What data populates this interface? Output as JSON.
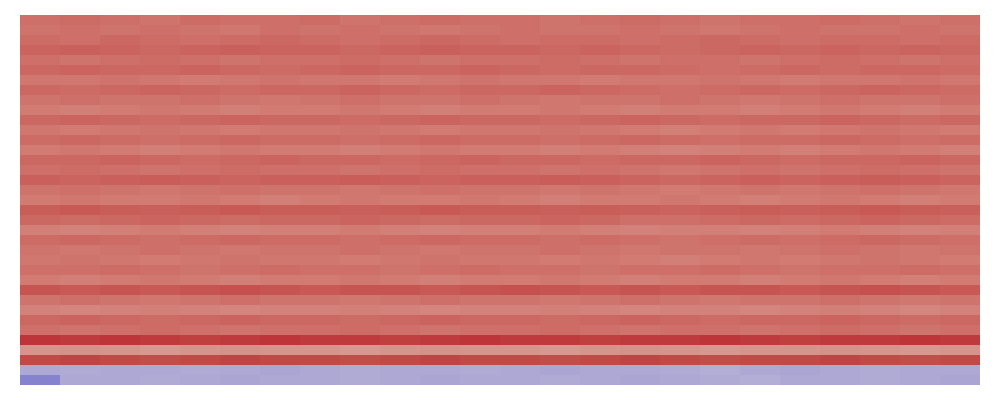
{
  "chart_data": {
    "type": "heatmap",
    "tick_labels": false,
    "zlim": [
      0,
      1
    ],
    "cells": [
      [
        0.8,
        0.81,
        0.8,
        0.79,
        0.81,
        0.8,
        0.8,
        0.81,
        0.79,
        0.8,
        0.81,
        0.8,
        0.8,
        0.79,
        0.8,
        0.81,
        0.8,
        0.79,
        0.8,
        0.8,
        0.81,
        0.8,
        0.79,
        0.8
      ],
      [
        0.79,
        0.8,
        0.79,
        0.8,
        0.79,
        0.78,
        0.8,
        0.79,
        0.8,
        0.79,
        0.78,
        0.79,
        0.8,
        0.79,
        0.79,
        0.8,
        0.79,
        0.78,
        0.79,
        0.8,
        0.79,
        0.79,
        0.8,
        0.79
      ],
      [
        0.81,
        0.8,
        0.82,
        0.81,
        0.8,
        0.81,
        0.82,
        0.81,
        0.8,
        0.81,
        0.82,
        0.81,
        0.8,
        0.81,
        0.81,
        0.8,
        0.81,
        0.82,
        0.81,
        0.8,
        0.81,
        0.81,
        0.8,
        0.81
      ],
      [
        0.83,
        0.84,
        0.83,
        0.82,
        0.83,
        0.84,
        0.83,
        0.83,
        0.82,
        0.83,
        0.84,
        0.83,
        0.83,
        0.82,
        0.83,
        0.82,
        0.81,
        0.82,
        0.83,
        0.82,
        0.83,
        0.82,
        0.83,
        0.82
      ],
      [
        0.8,
        0.79,
        0.8,
        0.81,
        0.8,
        0.79,
        0.8,
        0.8,
        0.81,
        0.8,
        0.79,
        0.8,
        0.8,
        0.81,
        0.8,
        0.79,
        0.8,
        0.8,
        0.79,
        0.8,
        0.81,
        0.8,
        0.79,
        0.8
      ],
      [
        0.82,
        0.83,
        0.82,
        0.82,
        0.83,
        0.82,
        0.81,
        0.82,
        0.83,
        0.82,
        0.82,
        0.83,
        0.82,
        0.81,
        0.82,
        0.82,
        0.81,
        0.8,
        0.81,
        0.82,
        0.81,
        0.82,
        0.82,
        0.81
      ],
      [
        0.78,
        0.78,
        0.79,
        0.78,
        0.77,
        0.78,
        0.79,
        0.78,
        0.78,
        0.77,
        0.78,
        0.79,
        0.78,
        0.78,
        0.77,
        0.78,
        0.78,
        0.79,
        0.78,
        0.77,
        0.78,
        0.78,
        0.79,
        0.78
      ],
      [
        0.82,
        0.81,
        0.82,
        0.83,
        0.82,
        0.81,
        0.82,
        0.82,
        0.83,
        0.82,
        0.81,
        0.82,
        0.82,
        0.83,
        0.82,
        0.81,
        0.8,
        0.81,
        0.82,
        0.81,
        0.82,
        0.83,
        0.82,
        0.81
      ],
      [
        0.79,
        0.8,
        0.79,
        0.79,
        0.8,
        0.79,
        0.78,
        0.79,
        0.8,
        0.79,
        0.79,
        0.8,
        0.79,
        0.78,
        0.79,
        0.79,
        0.8,
        0.79,
        0.78,
        0.79,
        0.8,
        0.79,
        0.79,
        0.8
      ],
      [
        0.77,
        0.76,
        0.77,
        0.78,
        0.77,
        0.76,
        0.77,
        0.77,
        0.78,
        0.77,
        0.76,
        0.77,
        0.77,
        0.78,
        0.77,
        0.76,
        0.77,
        0.77,
        0.76,
        0.77,
        0.78,
        0.77,
        0.76,
        0.77
      ],
      [
        0.82,
        0.83,
        0.82,
        0.81,
        0.82,
        0.83,
        0.82,
        0.82,
        0.81,
        0.82,
        0.83,
        0.82,
        0.82,
        0.81,
        0.82,
        0.83,
        0.82,
        0.81,
        0.82,
        0.82,
        0.83,
        0.82,
        0.81,
        0.82
      ],
      [
        0.78,
        0.77,
        0.78,
        0.79,
        0.78,
        0.77,
        0.78,
        0.78,
        0.79,
        0.78,
        0.77,
        0.78,
        0.78,
        0.79,
        0.78,
        0.77,
        0.76,
        0.77,
        0.78,
        0.77,
        0.78,
        0.79,
        0.78,
        0.77
      ],
      [
        0.81,
        0.82,
        0.81,
        0.8,
        0.81,
        0.82,
        0.81,
        0.81,
        0.8,
        0.81,
        0.82,
        0.81,
        0.81,
        0.8,
        0.81,
        0.82,
        0.81,
        0.8,
        0.81,
        0.81,
        0.82,
        0.81,
        0.8,
        0.81
      ],
      [
        0.77,
        0.78,
        0.77,
        0.76,
        0.77,
        0.78,
        0.77,
        0.77,
        0.76,
        0.77,
        0.78,
        0.77,
        0.77,
        0.76,
        0.77,
        0.76,
        0.75,
        0.76,
        0.77,
        0.76,
        0.77,
        0.78,
        0.77,
        0.76
      ],
      [
        0.82,
        0.82,
        0.83,
        0.82,
        0.81,
        0.82,
        0.83,
        0.82,
        0.82,
        0.81,
        0.82,
        0.83,
        0.82,
        0.82,
        0.81,
        0.82,
        0.82,
        0.83,
        0.82,
        0.81,
        0.82,
        0.82,
        0.83,
        0.82
      ],
      [
        0.8,
        0.81,
        0.8,
        0.79,
        0.8,
        0.81,
        0.8,
        0.8,
        0.79,
        0.8,
        0.81,
        0.8,
        0.8,
        0.79,
        0.8,
        0.79,
        0.78,
        0.79,
        0.8,
        0.79,
        0.8,
        0.81,
        0.8,
        0.79
      ],
      [
        0.84,
        0.83,
        0.84,
        0.85,
        0.84,
        0.83,
        0.84,
        0.84,
        0.85,
        0.84,
        0.83,
        0.84,
        0.84,
        0.85,
        0.84,
        0.83,
        0.82,
        0.83,
        0.84,
        0.83,
        0.84,
        0.85,
        0.84,
        0.83
      ],
      [
        0.79,
        0.8,
        0.79,
        0.78,
        0.79,
        0.8,
        0.79,
        0.79,
        0.78,
        0.79,
        0.8,
        0.79,
        0.79,
        0.78,
        0.79,
        0.78,
        0.77,
        0.78,
        0.79,
        0.78,
        0.79,
        0.8,
        0.79,
        0.78
      ],
      [
        0.77,
        0.78,
        0.77,
        0.77,
        0.78,
        0.77,
        0.76,
        0.77,
        0.78,
        0.77,
        0.77,
        0.78,
        0.77,
        0.76,
        0.77,
        0.77,
        0.78,
        0.77,
        0.76,
        0.77,
        0.78,
        0.77,
        0.76,
        0.77
      ],
      [
        0.85,
        0.86,
        0.85,
        0.84,
        0.85,
        0.86,
        0.85,
        0.85,
        0.84,
        0.85,
        0.86,
        0.85,
        0.85,
        0.84,
        0.85,
        0.84,
        0.83,
        0.84,
        0.85,
        0.84,
        0.85,
        0.86,
        0.85,
        0.84
      ],
      [
        0.82,
        0.81,
        0.82,
        0.83,
        0.82,
        0.81,
        0.82,
        0.82,
        0.83,
        0.82,
        0.81,
        0.82,
        0.82,
        0.83,
        0.82,
        0.8,
        0.8,
        0.81,
        0.82,
        0.81,
        0.82,
        0.83,
        0.82,
        0.81
      ],
      [
        0.76,
        0.75,
        0.76,
        0.77,
        0.76,
        0.75,
        0.76,
        0.76,
        0.77,
        0.76,
        0.75,
        0.76,
        0.76,
        0.77,
        0.76,
        0.75,
        0.76,
        0.76,
        0.75,
        0.76,
        0.77,
        0.76,
        0.75,
        0.76
      ],
      [
        0.81,
        0.82,
        0.81,
        0.8,
        0.81,
        0.82,
        0.81,
        0.81,
        0.8,
        0.81,
        0.82,
        0.81,
        0.81,
        0.8,
        0.81,
        0.8,
        0.79,
        0.8,
        0.81,
        0.8,
        0.81,
        0.82,
        0.81,
        0.8
      ],
      [
        0.79,
        0.78,
        0.79,
        0.8,
        0.79,
        0.78,
        0.79,
        0.79,
        0.8,
        0.79,
        0.78,
        0.79,
        0.79,
        0.8,
        0.79,
        0.78,
        0.79,
        0.79,
        0.78,
        0.79,
        0.8,
        0.79,
        0.78,
        0.79
      ],
      [
        0.78,
        0.79,
        0.78,
        0.77,
        0.78,
        0.79,
        0.78,
        0.78,
        0.77,
        0.78,
        0.79,
        0.78,
        0.78,
        0.77,
        0.78,
        0.77,
        0.76,
        0.77,
        0.78,
        0.77,
        0.78,
        0.79,
        0.78,
        0.77
      ],
      [
        0.8,
        0.8,
        0.81,
        0.8,
        0.79,
        0.8,
        0.81,
        0.8,
        0.8,
        0.79,
        0.8,
        0.81,
        0.8,
        0.8,
        0.79,
        0.8,
        0.8,
        0.81,
        0.8,
        0.79,
        0.8,
        0.8,
        0.81,
        0.8
      ],
      [
        0.77,
        0.76,
        0.77,
        0.78,
        0.77,
        0.76,
        0.77,
        0.77,
        0.78,
        0.77,
        0.76,
        0.77,
        0.77,
        0.78,
        0.77,
        0.76,
        0.77,
        0.77,
        0.76,
        0.77,
        0.78,
        0.77,
        0.76,
        0.77
      ],
      [
        0.87,
        0.86,
        0.87,
        0.86,
        0.87,
        0.88,
        0.87,
        0.86,
        0.87,
        0.87,
        0.86,
        0.87,
        0.88,
        0.87,
        0.86,
        0.87,
        0.86,
        0.87,
        0.87,
        0.86,
        0.87,
        0.88,
        0.87,
        0.86
      ],
      [
        0.79,
        0.8,
        0.79,
        0.78,
        0.79,
        0.8,
        0.79,
        0.79,
        0.78,
        0.79,
        0.8,
        0.79,
        0.79,
        0.78,
        0.79,
        0.8,
        0.79,
        0.78,
        0.79,
        0.79,
        0.8,
        0.79,
        0.78,
        0.79
      ],
      [
        0.75,
        0.74,
        0.75,
        0.76,
        0.75,
        0.74,
        0.75,
        0.75,
        0.76,
        0.75,
        0.74,
        0.75,
        0.75,
        0.76,
        0.75,
        0.74,
        0.75,
        0.75,
        0.74,
        0.75,
        0.76,
        0.75,
        0.74,
        0.75
      ],
      [
        0.82,
        0.83,
        0.82,
        0.81,
        0.82,
        0.83,
        0.82,
        0.82,
        0.81,
        0.82,
        0.83,
        0.82,
        0.82,
        0.81,
        0.82,
        0.83,
        0.82,
        0.81,
        0.82,
        0.82,
        0.83,
        0.82,
        0.81,
        0.82
      ],
      [
        0.8,
        0.79,
        0.8,
        0.81,
        0.8,
        0.79,
        0.8,
        0.8,
        0.81,
        0.8,
        0.79,
        0.8,
        0.8,
        0.81,
        0.8,
        0.79,
        0.8,
        0.8,
        0.79,
        0.8,
        0.81,
        0.8,
        0.79,
        0.8
      ],
      [
        0.94,
        0.93,
        0.94,
        0.93,
        0.92,
        0.93,
        0.94,
        0.93,
        0.93,
        0.92,
        0.93,
        0.94,
        0.93,
        0.93,
        0.92,
        0.93,
        0.93,
        0.94,
        0.93,
        0.92,
        0.93,
        0.93,
        0.94,
        0.93
      ],
      [
        0.7,
        0.71,
        0.7,
        0.69,
        0.7,
        0.71,
        0.7,
        0.7,
        0.69,
        0.7,
        0.71,
        0.7,
        0.7,
        0.69,
        0.7,
        0.71,
        0.7,
        0.69,
        0.7,
        0.7,
        0.71,
        0.7,
        0.69,
        0.7
      ],
      [
        0.9,
        0.91,
        0.9,
        0.89,
        0.9,
        0.91,
        0.9,
        0.9,
        0.89,
        0.9,
        0.91,
        0.9,
        0.9,
        0.89,
        0.9,
        0.91,
        0.9,
        0.89,
        0.9,
        0.9,
        0.91,
        0.9,
        0.89,
        0.9
      ],
      [
        0.33,
        0.34,
        0.33,
        0.33,
        0.34,
        0.33,
        0.32,
        0.33,
        0.34,
        0.33,
        0.33,
        0.34,
        0.33,
        0.32,
        0.33,
        0.33,
        0.34,
        0.35,
        0.33,
        0.32,
        0.33,
        0.34,
        0.33,
        0.33
      ],
      [
        0.2,
        0.33,
        0.33,
        0.34,
        0.33,
        0.32,
        0.33,
        0.33,
        0.34,
        0.33,
        0.32,
        0.33,
        0.33,
        0.34,
        0.33,
        0.32,
        0.33,
        0.34,
        0.35,
        0.33,
        0.33,
        0.34,
        0.33,
        0.32
      ]
    ]
  }
}
